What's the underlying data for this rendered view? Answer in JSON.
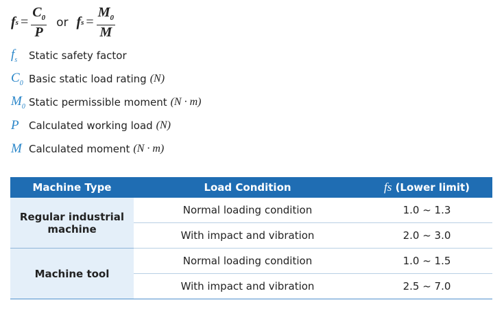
{
  "formula": {
    "lhs1": "f",
    "lhs1_sub": "s",
    "eq1": "=",
    "num1": "C",
    "num1_sub": "0",
    "den1": "P",
    "or": "or",
    "lhs2": "f",
    "lhs2_sub": "s",
    "eq2": "=",
    "num2": "M",
    "num2_sub": "0",
    "den2": "M"
  },
  "definitions": [
    {
      "symbol": "f",
      "symbol_sub": "s",
      "text": "Static safety factor"
    },
    {
      "symbol": "C",
      "symbol_sub": "0",
      "text": "Basic static load rating",
      "unit": "(N)"
    },
    {
      "symbol": "M",
      "symbol_sub": "0",
      "text": "Static permissible moment",
      "unit": "(N · m)"
    },
    {
      "symbol": "P",
      "text": "Calculated working load",
      "unit": "(N)"
    },
    {
      "symbol": "M",
      "text": "Calculated moment",
      "unit": "(N · m)"
    }
  ],
  "table": {
    "header": {
      "machine": "Machine Type",
      "load": "Load Condition",
      "fs_symbol": "fs",
      "fs_text": "(Lower limit)"
    },
    "groups": [
      {
        "machine": "Regular industrial machine",
        "rows": [
          {
            "load": "Normal loading condition",
            "fs": "1.0 ~ 1.3"
          },
          {
            "load": "With impact and vibration",
            "fs": "2.0 ~ 3.0"
          }
        ]
      },
      {
        "machine": "Machine tool",
        "rows": [
          {
            "load": "Normal loading condition",
            "fs": "1.0 ~ 1.5"
          },
          {
            "load": "With impact and vibration",
            "fs": "2.5 ~ 7.0"
          }
        ]
      }
    ]
  }
}
